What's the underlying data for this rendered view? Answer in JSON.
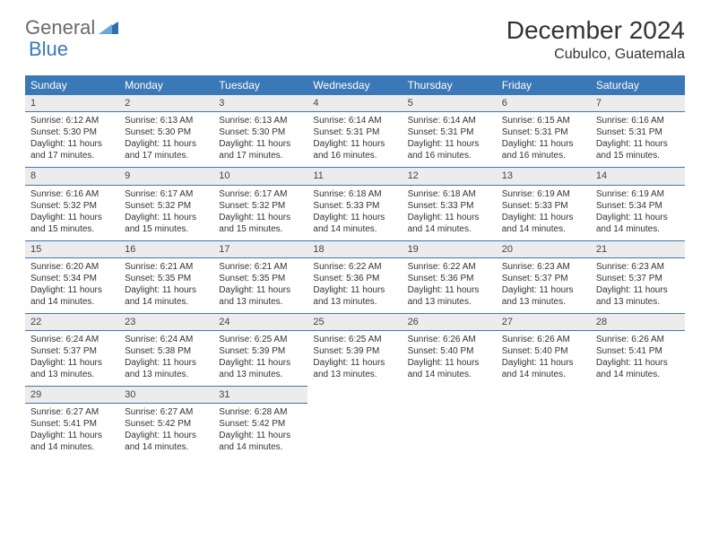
{
  "logo": {
    "text1": "General",
    "text2": "Blue"
  },
  "title": "December 2024",
  "location": "Cubulco, Guatemala",
  "colors": {
    "header_bg": "#3b78b8",
    "header_fg": "#ffffff",
    "daynum_bg": "#ececec",
    "border": "#3b78b8",
    "text": "#333333"
  },
  "weekdays": [
    "Sunday",
    "Monday",
    "Tuesday",
    "Wednesday",
    "Thursday",
    "Friday",
    "Saturday"
  ],
  "weeks": [
    [
      {
        "n": "1",
        "sr": "Sunrise: 6:12 AM",
        "ss": "Sunset: 5:30 PM",
        "d1": "Daylight: 11 hours",
        "d2": "and 17 minutes."
      },
      {
        "n": "2",
        "sr": "Sunrise: 6:13 AM",
        "ss": "Sunset: 5:30 PM",
        "d1": "Daylight: 11 hours",
        "d2": "and 17 minutes."
      },
      {
        "n": "3",
        "sr": "Sunrise: 6:13 AM",
        "ss": "Sunset: 5:30 PM",
        "d1": "Daylight: 11 hours",
        "d2": "and 17 minutes."
      },
      {
        "n": "4",
        "sr": "Sunrise: 6:14 AM",
        "ss": "Sunset: 5:31 PM",
        "d1": "Daylight: 11 hours",
        "d2": "and 16 minutes."
      },
      {
        "n": "5",
        "sr": "Sunrise: 6:14 AM",
        "ss": "Sunset: 5:31 PM",
        "d1": "Daylight: 11 hours",
        "d2": "and 16 minutes."
      },
      {
        "n": "6",
        "sr": "Sunrise: 6:15 AM",
        "ss": "Sunset: 5:31 PM",
        "d1": "Daylight: 11 hours",
        "d2": "and 16 minutes."
      },
      {
        "n": "7",
        "sr": "Sunrise: 6:16 AM",
        "ss": "Sunset: 5:31 PM",
        "d1": "Daylight: 11 hours",
        "d2": "and 15 minutes."
      }
    ],
    [
      {
        "n": "8",
        "sr": "Sunrise: 6:16 AM",
        "ss": "Sunset: 5:32 PM",
        "d1": "Daylight: 11 hours",
        "d2": "and 15 minutes."
      },
      {
        "n": "9",
        "sr": "Sunrise: 6:17 AM",
        "ss": "Sunset: 5:32 PM",
        "d1": "Daylight: 11 hours",
        "d2": "and 15 minutes."
      },
      {
        "n": "10",
        "sr": "Sunrise: 6:17 AM",
        "ss": "Sunset: 5:32 PM",
        "d1": "Daylight: 11 hours",
        "d2": "and 15 minutes."
      },
      {
        "n": "11",
        "sr": "Sunrise: 6:18 AM",
        "ss": "Sunset: 5:33 PM",
        "d1": "Daylight: 11 hours",
        "d2": "and 14 minutes."
      },
      {
        "n": "12",
        "sr": "Sunrise: 6:18 AM",
        "ss": "Sunset: 5:33 PM",
        "d1": "Daylight: 11 hours",
        "d2": "and 14 minutes."
      },
      {
        "n": "13",
        "sr": "Sunrise: 6:19 AM",
        "ss": "Sunset: 5:33 PM",
        "d1": "Daylight: 11 hours",
        "d2": "and 14 minutes."
      },
      {
        "n": "14",
        "sr": "Sunrise: 6:19 AM",
        "ss": "Sunset: 5:34 PM",
        "d1": "Daylight: 11 hours",
        "d2": "and 14 minutes."
      }
    ],
    [
      {
        "n": "15",
        "sr": "Sunrise: 6:20 AM",
        "ss": "Sunset: 5:34 PM",
        "d1": "Daylight: 11 hours",
        "d2": "and 14 minutes."
      },
      {
        "n": "16",
        "sr": "Sunrise: 6:21 AM",
        "ss": "Sunset: 5:35 PM",
        "d1": "Daylight: 11 hours",
        "d2": "and 14 minutes."
      },
      {
        "n": "17",
        "sr": "Sunrise: 6:21 AM",
        "ss": "Sunset: 5:35 PM",
        "d1": "Daylight: 11 hours",
        "d2": "and 13 minutes."
      },
      {
        "n": "18",
        "sr": "Sunrise: 6:22 AM",
        "ss": "Sunset: 5:36 PM",
        "d1": "Daylight: 11 hours",
        "d2": "and 13 minutes."
      },
      {
        "n": "19",
        "sr": "Sunrise: 6:22 AM",
        "ss": "Sunset: 5:36 PM",
        "d1": "Daylight: 11 hours",
        "d2": "and 13 minutes."
      },
      {
        "n": "20",
        "sr": "Sunrise: 6:23 AM",
        "ss": "Sunset: 5:37 PM",
        "d1": "Daylight: 11 hours",
        "d2": "and 13 minutes."
      },
      {
        "n": "21",
        "sr": "Sunrise: 6:23 AM",
        "ss": "Sunset: 5:37 PM",
        "d1": "Daylight: 11 hours",
        "d2": "and 13 minutes."
      }
    ],
    [
      {
        "n": "22",
        "sr": "Sunrise: 6:24 AM",
        "ss": "Sunset: 5:37 PM",
        "d1": "Daylight: 11 hours",
        "d2": "and 13 minutes."
      },
      {
        "n": "23",
        "sr": "Sunrise: 6:24 AM",
        "ss": "Sunset: 5:38 PM",
        "d1": "Daylight: 11 hours",
        "d2": "and 13 minutes."
      },
      {
        "n": "24",
        "sr": "Sunrise: 6:25 AM",
        "ss": "Sunset: 5:39 PM",
        "d1": "Daylight: 11 hours",
        "d2": "and 13 minutes."
      },
      {
        "n": "25",
        "sr": "Sunrise: 6:25 AM",
        "ss": "Sunset: 5:39 PM",
        "d1": "Daylight: 11 hours",
        "d2": "and 13 minutes."
      },
      {
        "n": "26",
        "sr": "Sunrise: 6:26 AM",
        "ss": "Sunset: 5:40 PM",
        "d1": "Daylight: 11 hours",
        "d2": "and 14 minutes."
      },
      {
        "n": "27",
        "sr": "Sunrise: 6:26 AM",
        "ss": "Sunset: 5:40 PM",
        "d1": "Daylight: 11 hours",
        "d2": "and 14 minutes."
      },
      {
        "n": "28",
        "sr": "Sunrise: 6:26 AM",
        "ss": "Sunset: 5:41 PM",
        "d1": "Daylight: 11 hours",
        "d2": "and 14 minutes."
      }
    ],
    [
      {
        "n": "29",
        "sr": "Sunrise: 6:27 AM",
        "ss": "Sunset: 5:41 PM",
        "d1": "Daylight: 11 hours",
        "d2": "and 14 minutes."
      },
      {
        "n": "30",
        "sr": "Sunrise: 6:27 AM",
        "ss": "Sunset: 5:42 PM",
        "d1": "Daylight: 11 hours",
        "d2": "and 14 minutes."
      },
      {
        "n": "31",
        "sr": "Sunrise: 6:28 AM",
        "ss": "Sunset: 5:42 PM",
        "d1": "Daylight: 11 hours",
        "d2": "and 14 minutes."
      },
      null,
      null,
      null,
      null
    ]
  ]
}
